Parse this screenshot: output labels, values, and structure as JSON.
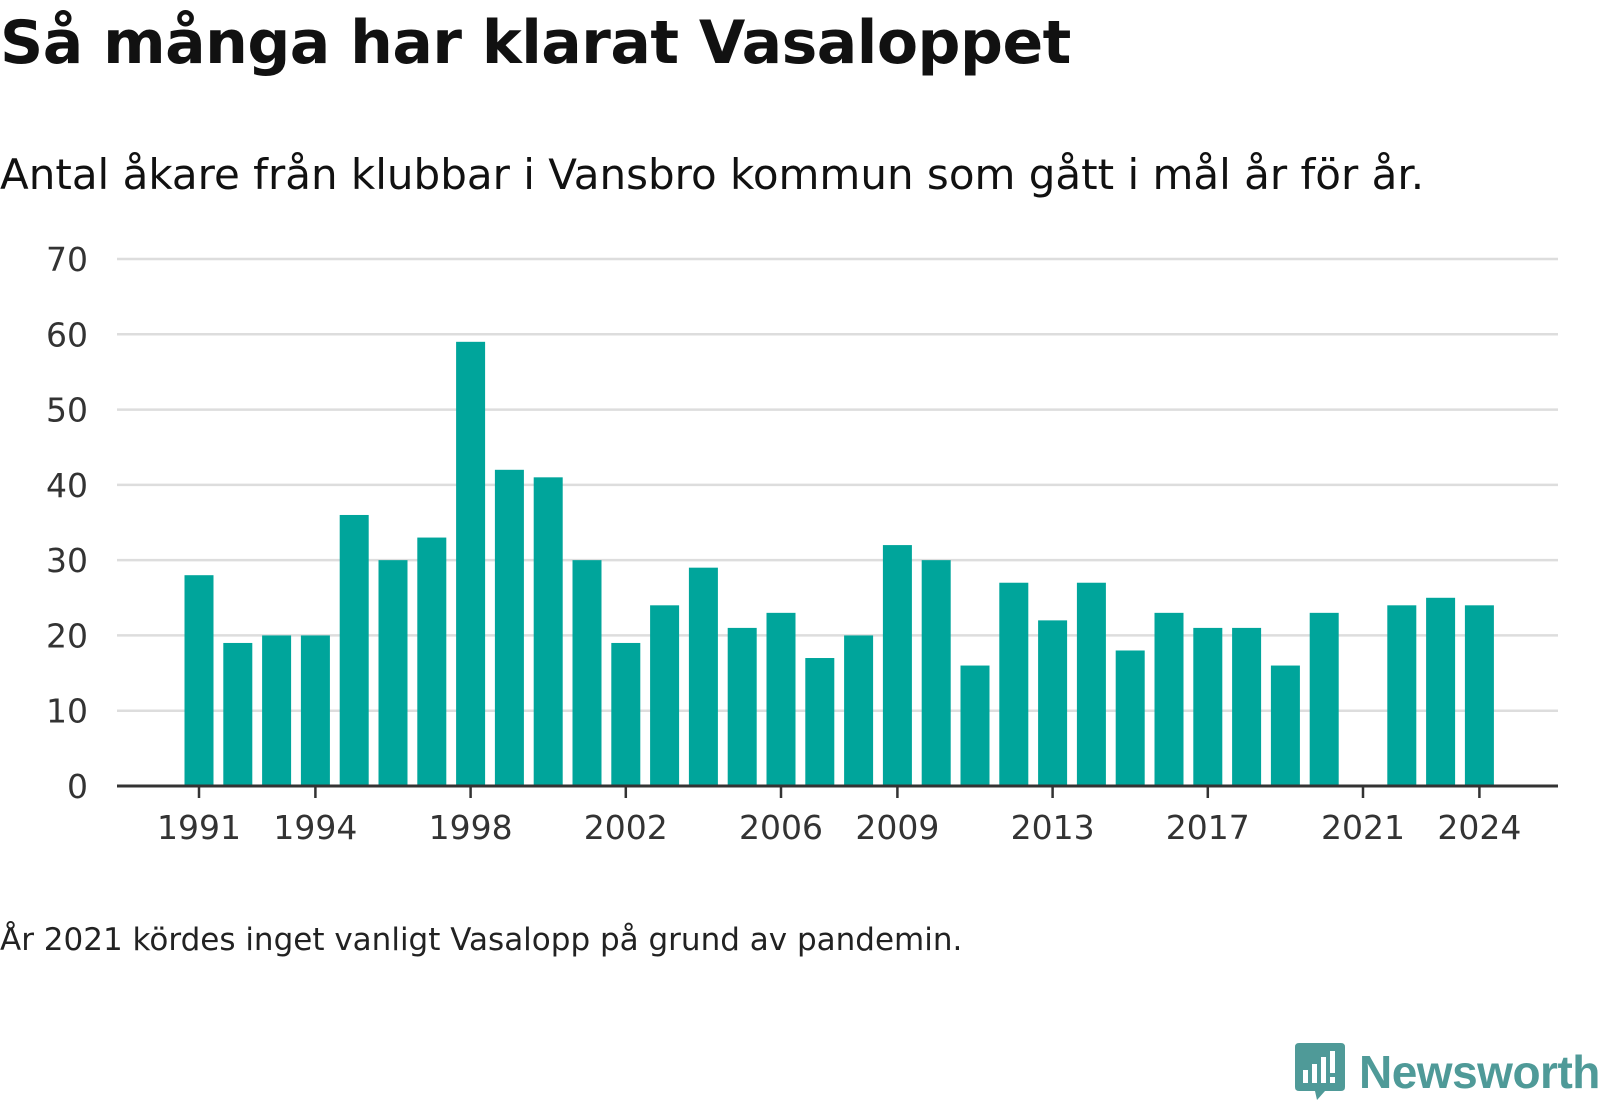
{
  "header": {
    "title": "Så många har klarat Vasaloppet",
    "subtitle": "Antal åkare från klubbar i Vansbro kommun som gått i mål år för år."
  },
  "footer": {
    "note": "År 2021 kördes inget vanligt Vasalopp på grund av pandemin.",
    "brand": "Newsworthy"
  },
  "colors": {
    "bar": "#00a59b",
    "grid": "#dddddd",
    "axis": "#333333",
    "brand": "#4f9a98"
  },
  "chart_data": {
    "type": "bar",
    "categories": [
      "1991",
      "1992",
      "1993",
      "1994",
      "1995",
      "1996",
      "1997",
      "1998",
      "1999",
      "2000",
      "2001",
      "2002",
      "2003",
      "2004",
      "2005",
      "2006",
      "2007",
      "2008",
      "2009",
      "2010",
      "2011",
      "2012",
      "2013",
      "2014",
      "2015",
      "2016",
      "2017",
      "2018",
      "2019",
      "2020",
      "2021",
      "2022",
      "2023",
      "2024"
    ],
    "values": [
      28,
      19,
      20,
      20,
      36,
      30,
      33,
      59,
      42,
      41,
      30,
      19,
      24,
      29,
      21,
      23,
      17,
      20,
      32,
      30,
      16,
      27,
      22,
      27,
      18,
      23,
      21,
      21,
      16,
      23,
      null,
      24,
      25,
      24
    ],
    "title": "Så många har klarat Vasaloppet",
    "subtitle": "Antal åkare från klubbar i Vansbro kommun som gått i mål år för år.",
    "xlabel": "",
    "ylabel": "",
    "ylim": [
      0,
      70
    ],
    "yticks": [
      0,
      10,
      20,
      30,
      40,
      50,
      60,
      70
    ],
    "xtick_labels": [
      "1991",
      "1994",
      "1998",
      "2002",
      "2006",
      "2009",
      "2013",
      "2017",
      "2021",
      "2024"
    ],
    "grid": "horizontal",
    "legend": "none"
  }
}
